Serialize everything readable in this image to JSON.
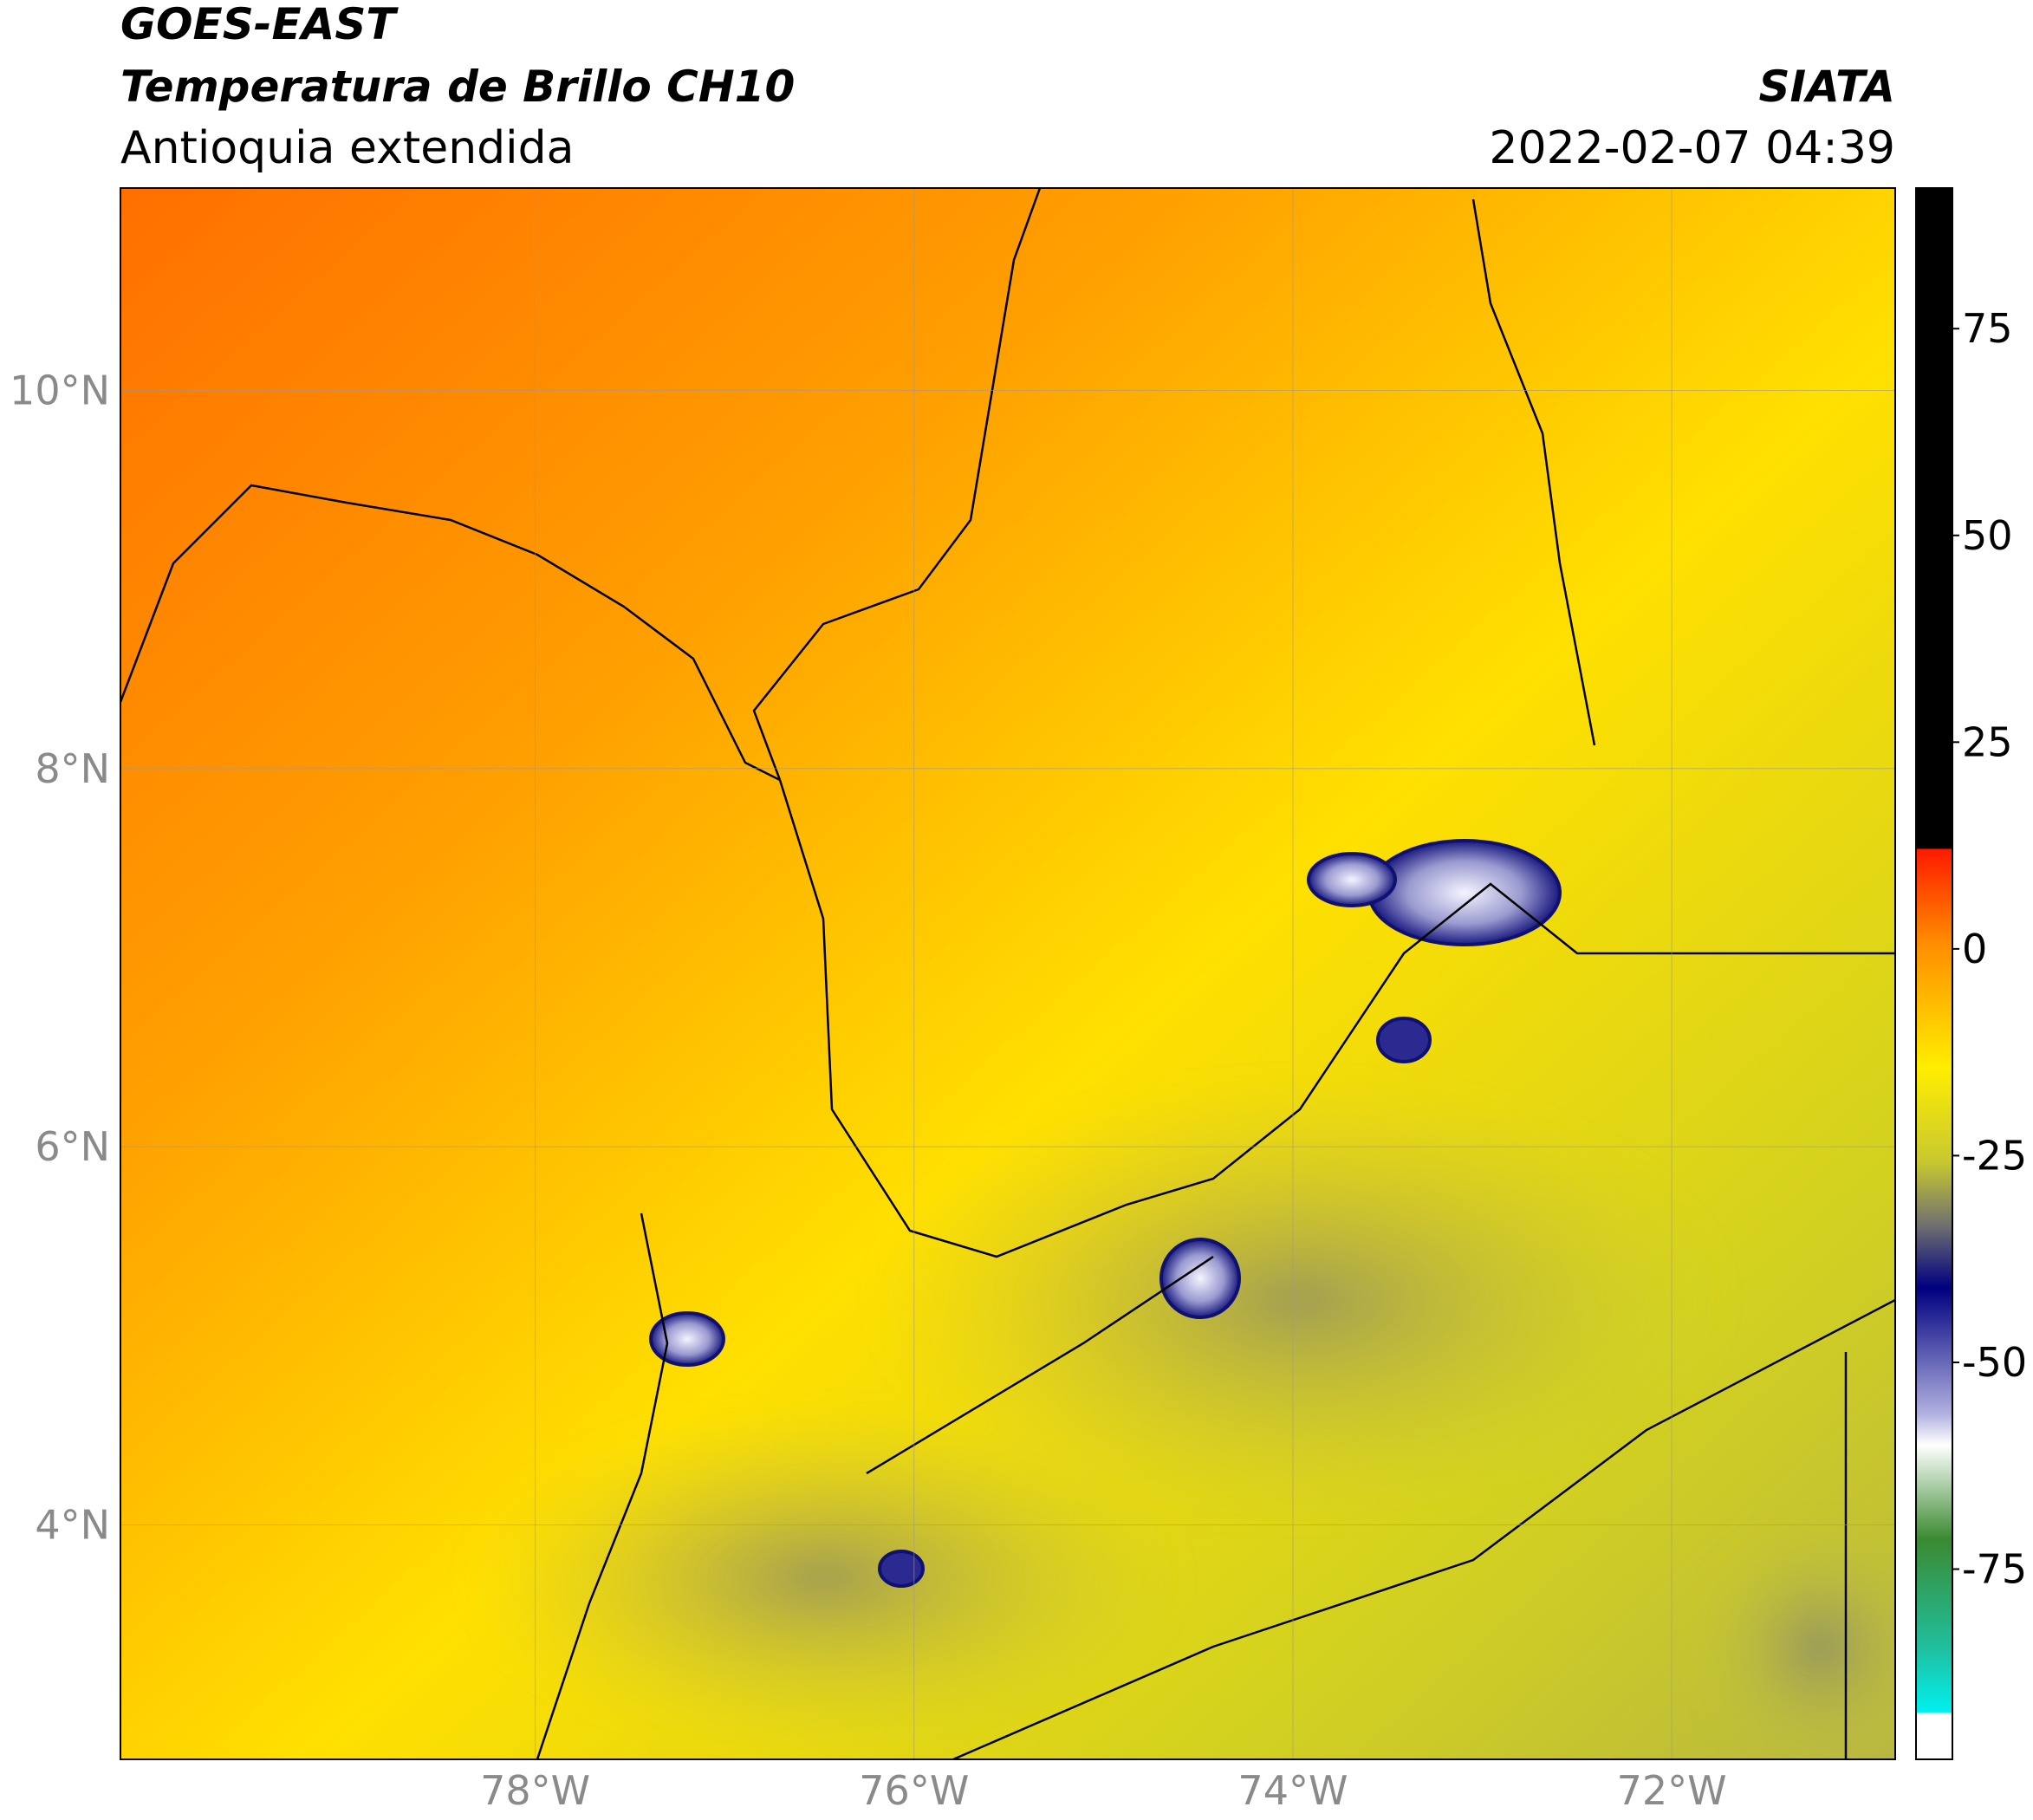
{
  "header": {
    "title": "GOES-EAST",
    "subtitle": "Temperatura de Brillo CH10",
    "region": "Antioquia extendida",
    "source": "SIATA",
    "datetime": "2022-02-07 04:39"
  },
  "map": {
    "xlim": [
      -80.19,
      -70.82
    ],
    "ylim": [
      2.76,
      11.07
    ],
    "xticks": [
      {
        "value": -78,
        "label": "78°W"
      },
      {
        "value": -76,
        "label": "76°W"
      },
      {
        "value": -74,
        "label": "74°W"
      },
      {
        "value": -72,
        "label": "72°W"
      }
    ],
    "yticks": [
      {
        "value": 10,
        "label": "10°N"
      },
      {
        "value": 8,
        "label": "8°N"
      },
      {
        "value": 6,
        "label": "6°N"
      },
      {
        "value": 4,
        "label": "4°N"
      }
    ],
    "grid": true
  },
  "colorbar": {
    "lim": [
      -98,
      92
    ],
    "ticks": [
      75,
      50,
      25,
      0,
      -25,
      -50,
      -75
    ]
  }
}
